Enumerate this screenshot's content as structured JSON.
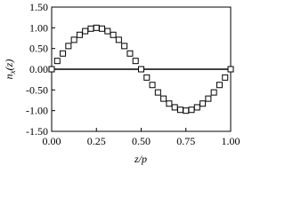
{
  "chart_data": {
    "type": "scatter",
    "xlabel": "z/p",
    "ylabel": {
      "main": "n",
      "sub": "x",
      "rest": "(z)"
    },
    "xlim": [
      0,
      1
    ],
    "ylim": [
      -1.5,
      1.5
    ],
    "xticks": [
      {
        "value": 0,
        "label": "0.00"
      },
      {
        "value": 0.25,
        "label": "0.25"
      },
      {
        "value": 0.5,
        "label": "0.50"
      },
      {
        "value": 0.75,
        "label": "0.75"
      },
      {
        "value": 1,
        "label": "1.00"
      }
    ],
    "yticks": [
      {
        "value": -1.5,
        "label": "-1.50"
      },
      {
        "value": -1,
        "label": "-1.00"
      },
      {
        "value": -0.5,
        "label": "-0.50"
      },
      {
        "value": 0,
        "label": "0.00"
      },
      {
        "value": 0.5,
        "label": "0.50"
      },
      {
        "value": 1,
        "label": "1.00"
      },
      {
        "value": 1.5,
        "label": "1.50"
      }
    ],
    "series": [
      {
        "color": "#000000",
        "x": [
          0,
          0.03125,
          0.0625,
          0.09375,
          0.125,
          0.15625,
          0.1875,
          0.21875,
          0.25,
          0.28125,
          0.3125,
          0.34375,
          0.375,
          0.40625,
          0.4375,
          0.46875,
          0.5,
          0.53125,
          0.5625,
          0.59375,
          0.625,
          0.65625,
          0.6875,
          0.71875,
          0.75,
          0.78125,
          0.8125,
          0.84375,
          0.875,
          0.90625,
          0.9375,
          0.96875,
          1
        ],
        "values": [
          0,
          0.2,
          0.38,
          0.56,
          0.71,
          0.83,
          0.92,
          0.98,
          1.0,
          0.98,
          0.92,
          0.83,
          0.71,
          0.56,
          0.38,
          0.2,
          0,
          -0.2,
          -0.38,
          -0.56,
          -0.71,
          -0.83,
          -0.92,
          -0.98,
          -1.0,
          -0.98,
          -0.92,
          -0.83,
          -0.71,
          -0.56,
          -0.38,
          -0.2,
          0
        ]
      }
    ]
  }
}
